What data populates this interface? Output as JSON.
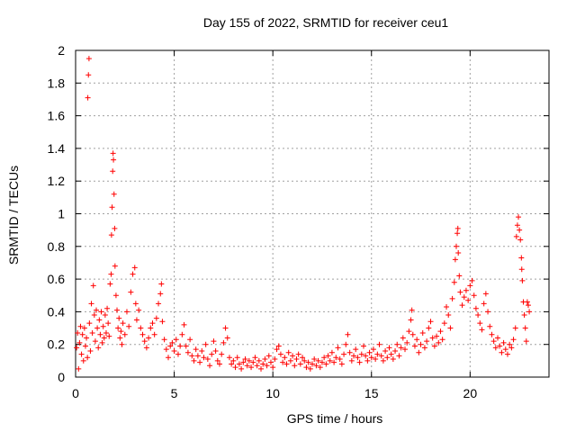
{
  "chart_data": {
    "type": "scatter",
    "title": "Day 155 of 2022, SRMTID for receiver ceu1",
    "xlabel": "GPS time / hours",
    "ylabel": "SRMTID / TECUs",
    "xlim": [
      0,
      24
    ],
    "ylim": [
      0,
      2
    ],
    "xticks": [
      0,
      5,
      10,
      15,
      20
    ],
    "xtick_labels": [
      "0",
      "5",
      "10",
      "15",
      "20"
    ],
    "yticks": [
      0,
      0.2,
      0.4,
      0.6,
      0.8,
      1,
      1.2,
      1.4,
      1.6,
      1.8,
      2
    ],
    "ytick_labels": [
      "0",
      "0.2",
      "0.4",
      "0.6",
      "0.8",
      "1",
      "1.2",
      "1.4",
      "1.6",
      "1.8",
      "2"
    ],
    "grid": true,
    "marker": "+",
    "series": [
      {
        "name": "SRMTID",
        "color": "#ff0000",
        "points": [
          [
            0.05,
            0.18
          ],
          [
            0.1,
            0.27
          ],
          [
            0.15,
            0.05
          ],
          [
            0.2,
            0.21
          ],
          [
            0.25,
            0.31
          ],
          [
            0.3,
            0.14
          ],
          [
            0.35,
            0.26
          ],
          [
            0.4,
            0.1
          ],
          [
            0.45,
            0.3
          ],
          [
            0.5,
            0.19
          ],
          [
            0.55,
            0.24
          ],
          [
            0.6,
            0.12
          ],
          [
            0.62,
            1.71
          ],
          [
            0.65,
            1.85
          ],
          [
            0.68,
            1.95
          ],
          [
            0.7,
            0.33
          ],
          [
            0.75,
            0.16
          ],
          [
            0.8,
            0.45
          ],
          [
            0.85,
            0.27
          ],
          [
            0.9,
            0.56
          ],
          [
            0.95,
            0.38
          ],
          [
            1.0,
            0.22
          ],
          [
            1.05,
            0.41
          ],
          [
            1.1,
            0.3
          ],
          [
            1.15,
            0.18
          ],
          [
            1.2,
            0.35
          ],
          [
            1.25,
            0.26
          ],
          [
            1.3,
            0.4
          ],
          [
            1.35,
            0.21
          ],
          [
            1.4,
            0.31
          ],
          [
            1.45,
            0.24
          ],
          [
            1.5,
            0.38
          ],
          [
            1.55,
            0.27
          ],
          [
            1.6,
            0.42
          ],
          [
            1.65,
            0.33
          ],
          [
            1.7,
            0.25
          ],
          [
            1.75,
            0.57
          ],
          [
            1.8,
            0.63
          ],
          [
            1.82,
            0.87
          ],
          [
            1.85,
            1.04
          ],
          [
            1.88,
            1.26
          ],
          [
            1.9,
            1.37
          ],
          [
            1.92,
            1.33
          ],
          [
            1.95,
            1.12
          ],
          [
            1.98,
            0.91
          ],
          [
            2.0,
            0.68
          ],
          [
            2.05,
            0.5
          ],
          [
            2.1,
            0.41
          ],
          [
            2.15,
            0.3
          ],
          [
            2.2,
            0.36
          ],
          [
            2.25,
            0.24
          ],
          [
            2.3,
            0.28
          ],
          [
            2.35,
            0.2
          ],
          [
            2.4,
            0.33
          ],
          [
            2.5,
            0.26
          ],
          [
            2.6,
            0.4
          ],
          [
            2.7,
            0.31
          ],
          [
            2.8,
            0.52
          ],
          [
            2.9,
            0.63
          ],
          [
            3.0,
            0.67
          ],
          [
            3.05,
            0.45
          ],
          [
            3.1,
            0.35
          ],
          [
            3.2,
            0.41
          ],
          [
            3.3,
            0.3
          ],
          [
            3.4,
            0.26
          ],
          [
            3.5,
            0.22
          ],
          [
            3.6,
            0.18
          ],
          [
            3.7,
            0.24
          ],
          [
            3.8,
            0.3
          ],
          [
            3.9,
            0.33
          ],
          [
            4.0,
            0.26
          ],
          [
            4.1,
            0.36
          ],
          [
            4.2,
            0.45
          ],
          [
            4.3,
            0.51
          ],
          [
            4.35,
            0.57
          ],
          [
            4.4,
            0.34
          ],
          [
            4.5,
            0.23
          ],
          [
            4.6,
            0.17
          ],
          [
            4.7,
            0.12
          ],
          [
            4.8,
            0.19
          ],
          [
            4.9,
            0.21
          ],
          [
            5.0,
            0.16
          ],
          [
            5.1,
            0.23
          ],
          [
            5.2,
            0.14
          ],
          [
            5.3,
            0.19
          ],
          [
            5.4,
            0.26
          ],
          [
            5.5,
            0.32
          ],
          [
            5.6,
            0.19
          ],
          [
            5.7,
            0.15
          ],
          [
            5.8,
            0.23
          ],
          [
            5.9,
            0.13
          ],
          [
            6.0,
            0.1
          ],
          [
            6.1,
            0.17
          ],
          [
            6.2,
            0.13
          ],
          [
            6.3,
            0.09
          ],
          [
            6.4,
            0.16
          ],
          [
            6.5,
            0.12
          ],
          [
            6.6,
            0.2
          ],
          [
            6.7,
            0.11
          ],
          [
            6.8,
            0.07
          ],
          [
            6.9,
            0.14
          ],
          [
            7.0,
            0.22
          ],
          [
            7.1,
            0.16
          ],
          [
            7.2,
            0.1
          ],
          [
            7.3,
            0.08
          ],
          [
            7.4,
            0.14
          ],
          [
            7.5,
            0.21
          ],
          [
            7.6,
            0.3
          ],
          [
            7.7,
            0.24
          ],
          [
            7.8,
            0.12
          ],
          [
            7.9,
            0.08
          ],
          [
            8.0,
            0.1
          ],
          [
            8.1,
            0.06
          ],
          [
            8.2,
            0.12
          ],
          [
            8.3,
            0.08
          ],
          [
            8.4,
            0.05
          ],
          [
            8.5,
            0.09
          ],
          [
            8.6,
            0.11
          ],
          [
            8.7,
            0.07
          ],
          [
            8.8,
            0.1
          ],
          [
            8.9,
            0.06
          ],
          [
            9.0,
            0.09
          ],
          [
            9.1,
            0.12
          ],
          [
            9.2,
            0.07
          ],
          [
            9.3,
            0.1
          ],
          [
            9.4,
            0.05
          ],
          [
            9.5,
            0.08
          ],
          [
            9.6,
            0.11
          ],
          [
            9.7,
            0.07
          ],
          [
            9.8,
            0.13
          ],
          [
            9.9,
            0.09
          ],
          [
            10.0,
            0.06
          ],
          [
            10.1,
            0.11
          ],
          [
            10.2,
            0.17
          ],
          [
            10.3,
            0.19
          ],
          [
            10.4,
            0.14
          ],
          [
            10.5,
            0.09
          ],
          [
            10.6,
            0.12
          ],
          [
            10.7,
            0.08
          ],
          [
            10.8,
            0.15
          ],
          [
            10.9,
            0.1
          ],
          [
            11.0,
            0.13
          ],
          [
            11.1,
            0.07
          ],
          [
            11.2,
            0.11
          ],
          [
            11.3,
            0.14
          ],
          [
            11.4,
            0.08
          ],
          [
            11.5,
            0.12
          ],
          [
            11.6,
            0.1
          ],
          [
            11.7,
            0.06
          ],
          [
            11.8,
            0.09
          ],
          [
            11.9,
            0.05
          ],
          [
            12.0,
            0.08
          ],
          [
            12.1,
            0.11
          ],
          [
            12.2,
            0.07
          ],
          [
            12.3,
            0.1
          ],
          [
            12.4,
            0.06
          ],
          [
            12.5,
            0.09
          ],
          [
            12.6,
            0.12
          ],
          [
            12.7,
            0.08
          ],
          [
            12.8,
            0.13
          ],
          [
            12.9,
            0.1
          ],
          [
            13.0,
            0.15
          ],
          [
            13.1,
            0.09
          ],
          [
            13.2,
            0.12
          ],
          [
            13.3,
            0.18
          ],
          [
            13.4,
            0.11
          ],
          [
            13.5,
            0.08
          ],
          [
            13.6,
            0.14
          ],
          [
            13.7,
            0.2
          ],
          [
            13.8,
            0.26
          ],
          [
            13.9,
            0.15
          ],
          [
            14.0,
            0.1
          ],
          [
            14.1,
            0.13
          ],
          [
            14.2,
            0.17
          ],
          [
            14.3,
            0.12
          ],
          [
            14.4,
            0.09
          ],
          [
            14.5,
            0.14
          ],
          [
            14.6,
            0.19
          ],
          [
            14.7,
            0.13
          ],
          [
            14.8,
            0.1
          ],
          [
            14.9,
            0.15
          ],
          [
            15.0,
            0.12
          ],
          [
            15.1,
            0.17
          ],
          [
            15.2,
            0.11
          ],
          [
            15.3,
            0.14
          ],
          [
            15.4,
            0.2
          ],
          [
            15.5,
            0.13
          ],
          [
            15.6,
            0.1
          ],
          [
            15.7,
            0.16
          ],
          [
            15.8,
            0.12
          ],
          [
            15.9,
            0.18
          ],
          [
            16.0,
            0.14
          ],
          [
            16.1,
            0.11
          ],
          [
            16.2,
            0.16
          ],
          [
            16.3,
            0.2
          ],
          [
            16.4,
            0.13
          ],
          [
            16.5,
            0.18
          ],
          [
            16.6,
            0.24
          ],
          [
            16.7,
            0.17
          ],
          [
            16.8,
            0.21
          ],
          [
            16.9,
            0.28
          ],
          [
            17.0,
            0.35
          ],
          [
            17.05,
            0.41
          ],
          [
            17.1,
            0.26
          ],
          [
            17.2,
            0.19
          ],
          [
            17.3,
            0.23
          ],
          [
            17.4,
            0.15
          ],
          [
            17.5,
            0.2
          ],
          [
            17.6,
            0.27
          ],
          [
            17.7,
            0.18
          ],
          [
            17.8,
            0.22
          ],
          [
            17.9,
            0.3
          ],
          [
            18.0,
            0.34
          ],
          [
            18.1,
            0.24
          ],
          [
            18.2,
            0.19
          ],
          [
            18.3,
            0.25
          ],
          [
            18.4,
            0.21
          ],
          [
            18.5,
            0.28
          ],
          [
            18.6,
            0.23
          ],
          [
            18.7,
            0.33
          ],
          [
            18.8,
            0.43
          ],
          [
            18.9,
            0.38
          ],
          [
            19.0,
            0.3
          ],
          [
            19.1,
            0.48
          ],
          [
            19.2,
            0.58
          ],
          [
            19.25,
            0.72
          ],
          [
            19.3,
            0.8
          ],
          [
            19.35,
            0.88
          ],
          [
            19.38,
            0.91
          ],
          [
            19.4,
            0.76
          ],
          [
            19.45,
            0.62
          ],
          [
            19.5,
            0.52
          ],
          [
            19.6,
            0.44
          ],
          [
            19.7,
            0.49
          ],
          [
            19.8,
            0.53
          ],
          [
            19.9,
            0.47
          ],
          [
            20.0,
            0.56
          ],
          [
            20.1,
            0.59
          ],
          [
            20.2,
            0.5
          ],
          [
            20.3,
            0.42
          ],
          [
            20.4,
            0.38
          ],
          [
            20.5,
            0.33
          ],
          [
            20.6,
            0.29
          ],
          [
            20.7,
            0.45
          ],
          [
            20.8,
            0.51
          ],
          [
            20.9,
            0.4
          ],
          [
            21.0,
            0.31
          ],
          [
            21.1,
            0.26
          ],
          [
            21.2,
            0.22
          ],
          [
            21.3,
            0.18
          ],
          [
            21.4,
            0.24
          ],
          [
            21.5,
            0.19
          ],
          [
            21.6,
            0.15
          ],
          [
            21.7,
            0.21
          ],
          [
            21.8,
            0.17
          ],
          [
            21.9,
            0.14
          ],
          [
            22.0,
            0.2
          ],
          [
            22.1,
            0.18
          ],
          [
            22.2,
            0.23
          ],
          [
            22.3,
            0.3
          ],
          [
            22.35,
            0.86
          ],
          [
            22.4,
            0.93
          ],
          [
            22.45,
            0.98
          ],
          [
            22.5,
            0.9
          ],
          [
            22.55,
            0.84
          ],
          [
            22.6,
            0.73
          ],
          [
            22.62,
            0.66
          ],
          [
            22.65,
            0.59
          ],
          [
            22.7,
            0.46
          ],
          [
            22.75,
            0.38
          ],
          [
            22.8,
            0.3
          ],
          [
            22.85,
            0.22
          ],
          [
            22.9,
            0.46
          ],
          [
            22.95,
            0.44
          ],
          [
            23.0,
            0.4
          ]
        ]
      }
    ]
  }
}
